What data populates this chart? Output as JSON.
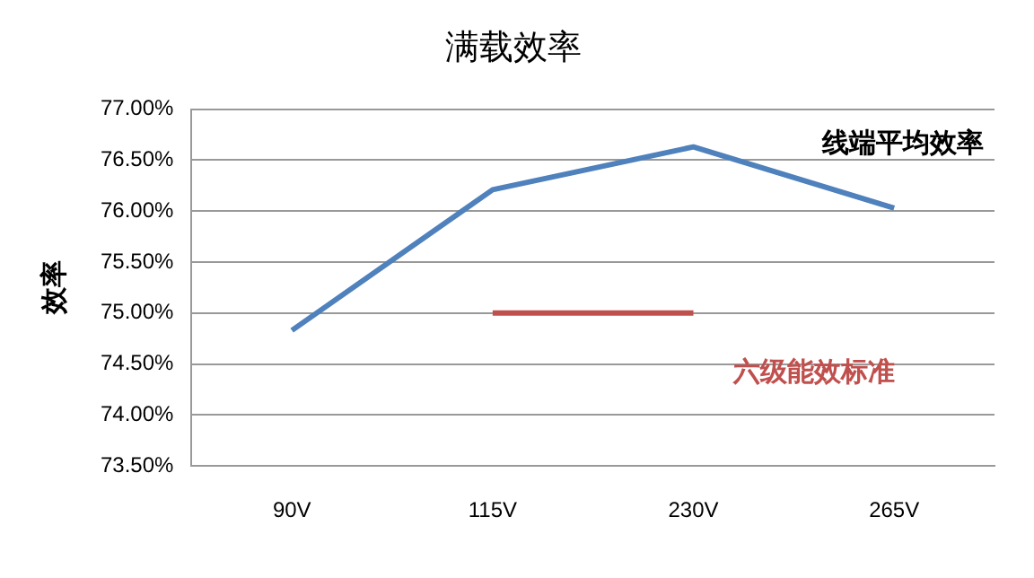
{
  "chart_data": {
    "type": "line",
    "title": "满载效率",
    "ylabel": "效率",
    "categories": [
      "90V",
      "115V",
      "230V",
      "265V"
    ],
    "series": [
      {
        "name": "线端平均效率",
        "color": "#4f81bd",
        "values": [
          74.83,
          76.21,
          76.63,
          76.03
        ]
      },
      {
        "name": "六级能效标准",
        "color": "#c0504d",
        "values": [
          null,
          75,
          75,
          null
        ]
      }
    ],
    "ylim": [
      73.5,
      77
    ],
    "yticks": [
      {
        "value": 73.5,
        "label": "73.50%"
      },
      {
        "value": 74,
        "label": "74.00%"
      },
      {
        "value": 74.5,
        "label": "74.50%"
      },
      {
        "value": 75,
        "label": "75.00%"
      },
      {
        "value": 75.5,
        "label": "75.50%"
      },
      {
        "value": 76,
        "label": "76.00%"
      },
      {
        "value": 76.5,
        "label": "76.50%"
      },
      {
        "value": 77,
        "label": "77.00%"
      }
    ],
    "grid": "y",
    "legend": false,
    "marker": "none",
    "line_style": "solid"
  }
}
